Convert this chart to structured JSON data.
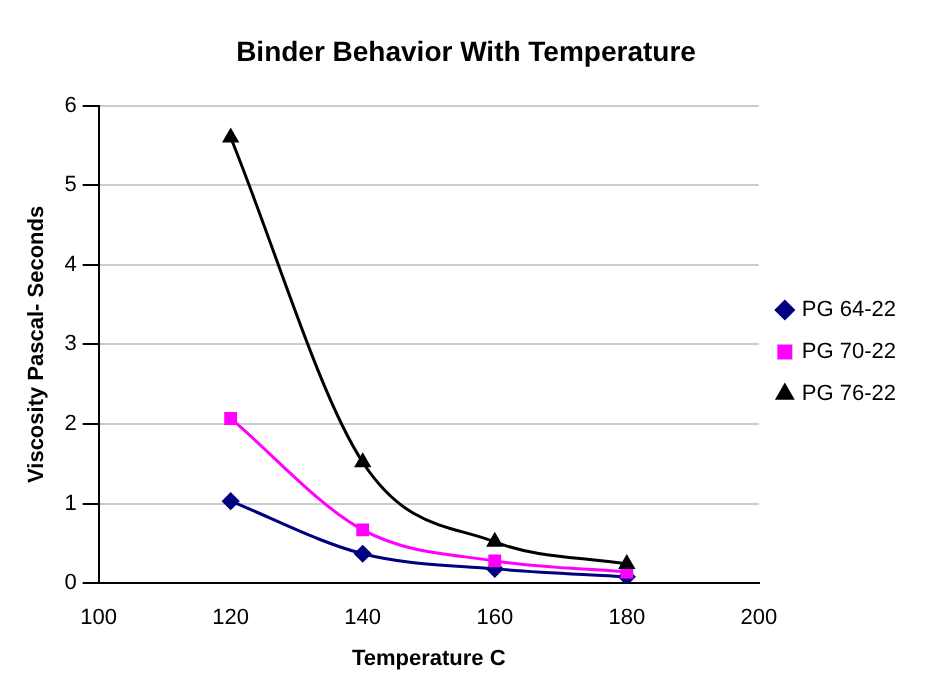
{
  "chart_data": {
    "type": "line",
    "title": "Binder Behavior With Temperature",
    "xlabel": "Temperature C",
    "ylabel": "Viscosity Pascal- Seconds",
    "x": [
      120,
      140,
      160,
      180
    ],
    "series": [
      {
        "name": "PG 64-22",
        "color": "#000080",
        "marker": "diamond",
        "values": [
          1.03,
          0.37,
          0.18,
          0.08
        ]
      },
      {
        "name": "PG 70-22",
        "color": "#ff00ff",
        "marker": "square",
        "values": [
          2.07,
          0.67,
          0.28,
          0.14
        ]
      },
      {
        "name": "PG 76-22",
        "color": "#000000",
        "marker": "triangle",
        "values": [
          5.6,
          1.52,
          0.52,
          0.24
        ]
      }
    ],
    "xlim": [
      100,
      200
    ],
    "xticks": [
      100,
      120,
      140,
      160,
      180,
      200
    ],
    "ylim": [
      0,
      6
    ],
    "yticks": [
      0,
      1,
      2,
      3,
      4,
      5,
      6
    ],
    "grid": "y",
    "legend": "right",
    "line_style": "solid"
  }
}
